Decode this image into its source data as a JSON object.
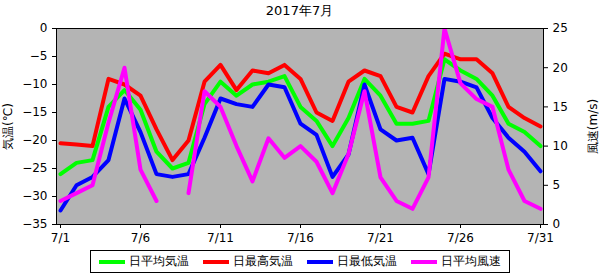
{
  "chart_data": {
    "type": "line",
    "title": "2017年7月",
    "y_label": "気温(℃)",
    "y2_label": "風速(m/s)",
    "categories": [
      "7/1",
      null,
      null,
      null,
      null,
      "7/6",
      null,
      null,
      null,
      null,
      "7/11",
      null,
      null,
      null,
      null,
      "7/16",
      null,
      null,
      null,
      null,
      "7/21",
      null,
      null,
      null,
      null,
      "7/26",
      null,
      null,
      null,
      null,
      "7/31"
    ],
    "ylim": [
      -35,
      0
    ],
    "yticks": [
      -35,
      -30,
      -25,
      -20,
      -15,
      -10,
      -5,
      0
    ],
    "y2lim": [
      0,
      25
    ],
    "y2ticks": [
      0,
      5,
      10,
      15,
      20,
      25
    ],
    "legend": "bottom",
    "series": [
      {
        "name": "日平均気温",
        "color": "#00ff00",
        "values": [
          -26,
          -24,
          -23.5,
          -14,
          -11,
          -14.5,
          -22,
          -25,
          -24,
          -13.5,
          -9.5,
          -12,
          -10,
          -9.5,
          -8.5,
          -14,
          -16.5,
          -21,
          -16,
          -9,
          -12,
          -17,
          -17,
          -16.5,
          -5.5,
          -7.5,
          -9,
          -12,
          -17,
          -18.5,
          -21
        ]
      },
      {
        "name": "日最高気温",
        "color": "#ff0000",
        "values": [
          -20.5,
          -20.7,
          -21,
          -9,
          -10,
          -12,
          -18,
          -23.5,
          -20,
          -9.5,
          -6.5,
          -11,
          -7.5,
          -8,
          -6.5,
          -9,
          -15,
          -16.5,
          -9.5,
          -7.5,
          -8.5,
          -14,
          -15,
          -8.5,
          -4.5,
          -5.5,
          -5.5,
          -8,
          -14,
          -16,
          -17.5
        ]
      },
      {
        "name": "日最低気温",
        "color": "#0000ff",
        "values": [
          -32.5,
          -28,
          -26.5,
          -23.5,
          -12.5,
          -18.5,
          -26,
          -26.5,
          -26,
          -19.5,
          -12.5,
          -13.5,
          -14,
          -10,
          -10.5,
          -17,
          -19,
          -26.5,
          -22.5,
          -10,
          -18,
          -20,
          -19.5,
          -26,
          -9,
          -9.5,
          -10.5,
          -16,
          -19.5,
          -22,
          -25.5
        ]
      },
      {
        "name": "日平均風速",
        "color": "#ff00ff",
        "axis": "y2",
        "values": [
          3,
          4,
          5,
          13,
          20,
          7,
          3,
          null,
          4,
          17,
          15,
          10,
          5.5,
          11,
          8.5,
          10,
          8,
          4,
          9,
          17,
          6,
          3,
          2,
          6,
          25,
          18,
          16,
          15,
          7,
          3,
          2
        ]
      }
    ]
  }
}
